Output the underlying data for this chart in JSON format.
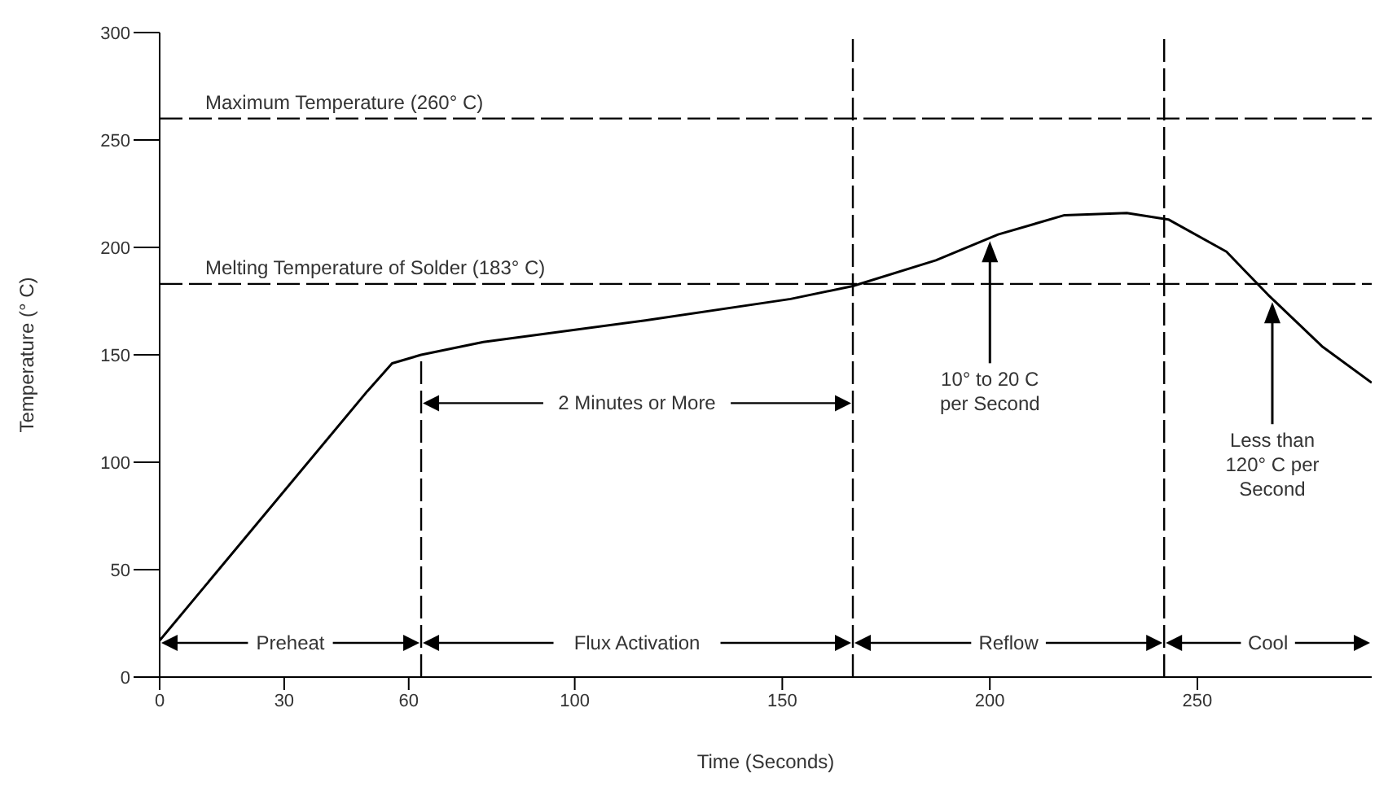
{
  "chart_data": {
    "type": "line",
    "xlabel": "Time (Seconds)",
    "ylabel": "Temperature (° C)",
    "x": [
      0,
      50,
      56,
      63,
      78,
      117,
      152,
      167,
      187,
      202,
      218,
      233,
      243,
      257,
      267,
      280,
      292
    ],
    "series": [
      {
        "color": "#000000",
        "values": [
          17,
          133,
          146,
          150,
          156,
          166,
          176,
          182,
          194,
          206,
          215,
          216,
          213,
          198,
          178,
          154,
          137
        ]
      }
    ],
    "xlim": [
      0,
      292
    ],
    "xticks": [
      0,
      30,
      60,
      100,
      150,
      200,
      250
    ],
    "ylim": [
      0,
      300
    ],
    "yticks": [
      0,
      50,
      100,
      150,
      200,
      250,
      300
    ],
    "marker": "none",
    "line_style": "solid",
    "ref_lines": [
      {
        "axis": "y",
        "value": 260,
        "label": "Maximum Temperature (260° C)",
        "color": "#000000",
        "line_style": "dashed"
      },
      {
        "axis": "y",
        "value": 183,
        "label": "Melting Temperature of Solder (183° C)",
        "color": "#000000",
        "line_style": "dashed"
      },
      {
        "axis": "x",
        "value": 63,
        "color": "#000000",
        "line_style": "dashed"
      },
      {
        "axis": "x",
        "value": 167,
        "color": "#000000",
        "line_style": "dashed"
      },
      {
        "axis": "x",
        "value": 242,
        "color": "#000000",
        "line_style": "dashed"
      }
    ],
    "annotations": [
      "2 Minutes or More",
      "10° to 20 C per Second",
      "Less than 120° C per Second",
      "Preheat",
      "Flux Activation",
      "Reflow",
      "Cool"
    ]
  }
}
